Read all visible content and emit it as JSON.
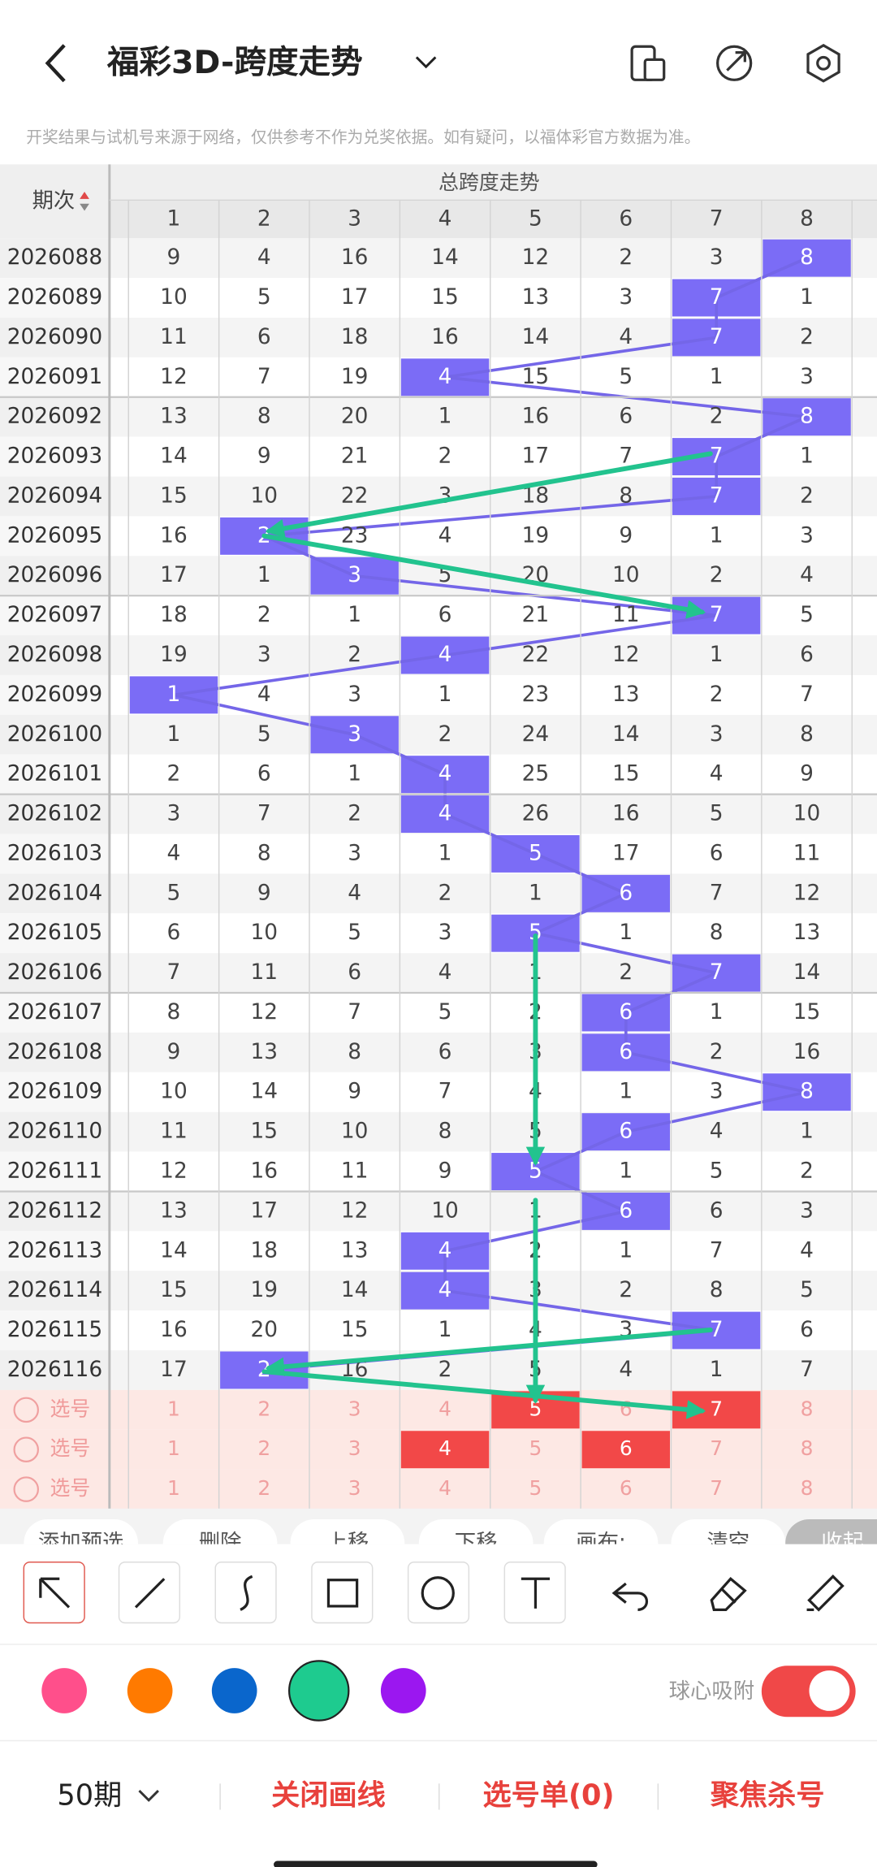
{
  "header": {
    "title": "福彩3D-跨度走势"
  },
  "notice": "开奖结果与试机号来源于网络，仅供参考不作为兑奖依据。如有疑问，以福体彩官方数据为准。",
  "table": {
    "period_header": "期次",
    "group_header": "总跨度走势",
    "columns": [
      1,
      2,
      3,
      4,
      5,
      6,
      7,
      8
    ],
    "hit_color": "#7b6cf6",
    "line_color": "#7466e8",
    "rows": [
      {
        "period": "2026088",
        "values": [
          9,
          4,
          16,
          14,
          12,
          2,
          3,
          8
        ],
        "hit_column": 8
      },
      {
        "period": "2026089",
        "values": [
          10,
          5,
          17,
          15,
          13,
          3,
          7,
          1
        ],
        "hit_column": 7
      },
      {
        "period": "2026090",
        "values": [
          11,
          6,
          18,
          16,
          14,
          4,
          7,
          2
        ],
        "hit_column": 7
      },
      {
        "period": "2026091",
        "values": [
          12,
          7,
          19,
          4,
          15,
          5,
          1,
          3
        ],
        "hit_column": 4
      },
      {
        "period": "2026092",
        "values": [
          13,
          8,
          20,
          1,
          16,
          6,
          2,
          8
        ],
        "hit_column": 8
      },
      {
        "period": "2026093",
        "values": [
          14,
          9,
          21,
          2,
          17,
          7,
          7,
          1
        ],
        "hit_column": 7
      },
      {
        "period": "2026094",
        "values": [
          15,
          10,
          22,
          3,
          18,
          8,
          7,
          2
        ],
        "hit_column": 7
      },
      {
        "period": "2026095",
        "values": [
          16,
          2,
          23,
          4,
          19,
          9,
          1,
          3
        ],
        "hit_column": 2
      },
      {
        "period": "2026096",
        "values": [
          17,
          1,
          3,
          5,
          20,
          10,
          2,
          4
        ],
        "hit_column": 3
      },
      {
        "period": "2026097",
        "values": [
          18,
          2,
          1,
          6,
          21,
          11,
          7,
          5
        ],
        "hit_column": 7
      },
      {
        "period": "2026098",
        "values": [
          19,
          3,
          2,
          4,
          22,
          12,
          1,
          6
        ],
        "hit_column": 4
      },
      {
        "period": "2026099",
        "values": [
          1,
          4,
          3,
          1,
          23,
          13,
          2,
          7
        ],
        "hit_column": 1
      },
      {
        "period": "2026100",
        "values": [
          1,
          5,
          3,
          2,
          24,
          14,
          3,
          8
        ],
        "hit_column": 3
      },
      {
        "period": "2026101",
        "values": [
          2,
          6,
          1,
          4,
          25,
          15,
          4,
          9
        ],
        "hit_column": 4
      },
      {
        "period": "2026102",
        "values": [
          3,
          7,
          2,
          4,
          26,
          16,
          5,
          10
        ],
        "hit_column": 4
      },
      {
        "period": "2026103",
        "values": [
          4,
          8,
          3,
          1,
          5,
          17,
          6,
          11
        ],
        "hit_column": 5
      },
      {
        "period": "2026104",
        "values": [
          5,
          9,
          4,
          2,
          1,
          6,
          7,
          12
        ],
        "hit_column": 6
      },
      {
        "period": "2026105",
        "values": [
          6,
          10,
          5,
          3,
          5,
          1,
          8,
          13
        ],
        "hit_column": 5
      },
      {
        "period": "2026106",
        "values": [
          7,
          11,
          6,
          4,
          1,
          2,
          7,
          14
        ],
        "hit_column": 7
      },
      {
        "period": "2026107",
        "values": [
          8,
          12,
          7,
          5,
          2,
          6,
          1,
          15
        ],
        "hit_column": 6
      },
      {
        "period": "2026108",
        "values": [
          9,
          13,
          8,
          6,
          3,
          6,
          2,
          16
        ],
        "hit_column": 6
      },
      {
        "period": "2026109",
        "values": [
          10,
          14,
          9,
          7,
          4,
          1,
          3,
          8
        ],
        "hit_column": 8
      },
      {
        "period": "2026110",
        "values": [
          11,
          15,
          10,
          8,
          5,
          6,
          4,
          1
        ],
        "hit_column": 6
      },
      {
        "period": "2026111",
        "values": [
          12,
          16,
          11,
          9,
          5,
          1,
          5,
          2
        ],
        "hit_column": 5
      },
      {
        "period": "2026112",
        "values": [
          13,
          17,
          12,
          10,
          1,
          6,
          6,
          3
        ],
        "hit_column": 6
      },
      {
        "period": "2026113",
        "values": [
          14,
          18,
          13,
          4,
          2,
          1,
          7,
          4
        ],
        "hit_column": 4
      },
      {
        "period": "2026114",
        "values": [
          15,
          19,
          14,
          4,
          3,
          2,
          8,
          5
        ],
        "hit_column": 4
      },
      {
        "period": "2026115",
        "values": [
          16,
          20,
          15,
          1,
          4,
          3,
          7,
          6
        ],
        "hit_column": 7
      },
      {
        "period": "2026116",
        "values": [
          17,
          2,
          16,
          2,
          5,
          4,
          1,
          7
        ],
        "hit_column": 2
      }
    ]
  },
  "picker": {
    "label": "选号",
    "selected_color": "#f24848",
    "rows": [
      {
        "values": [
          1,
          2,
          3,
          4,
          5,
          6,
          7,
          8
        ],
        "selected": [
          5,
          7
        ]
      },
      {
        "values": [
          1,
          2,
          3,
          4,
          5,
          6,
          7,
          8
        ],
        "selected": [
          4,
          6
        ]
      },
      {
        "values": [
          1,
          2,
          3,
          4,
          5,
          6,
          7,
          8
        ],
        "selected": []
      }
    ]
  },
  "actions": [
    "添加预选",
    "删除",
    "上移",
    "下移",
    "画布:",
    "清空",
    "收起"
  ],
  "toggle_label": "球心吸附",
  "bottom": {
    "period_select": "50期",
    "items": [
      "关闭画线",
      "选号单(0)",
      "聚焦杀号"
    ]
  }
}
